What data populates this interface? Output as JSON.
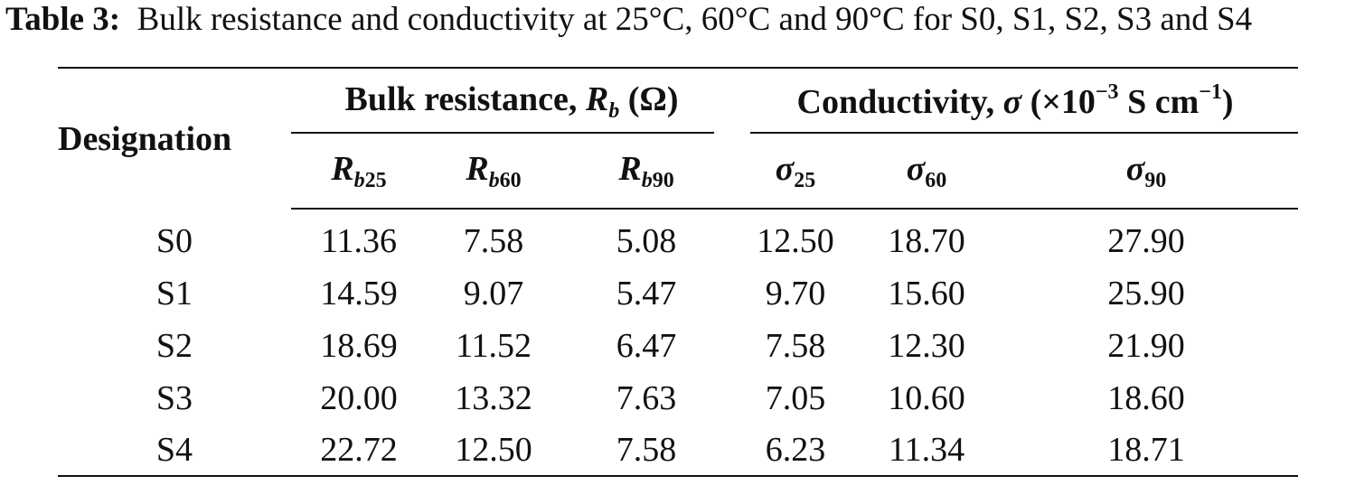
{
  "caption": {
    "label": "Table 3:",
    "text": "Bulk resistance and conductivity at 25°C, 60°C and 90°C for S0, S1, S2, S3 and S4"
  },
  "table": {
    "header": {
      "designation": "Designation",
      "group_resistance": {
        "text": "Bulk resistance,",
        "symbol": "R",
        "symbol_sub": "b",
        "unit": "(Ω)"
      },
      "group_conductivity": {
        "text": "Conductivity,",
        "symbol": "σ",
        "unit_prefix": "(×10",
        "unit_exp": "−3",
        "unit_mid": "S cm",
        "unit_exp2": "−1",
        "unit_suffix": ")"
      },
      "sub_columns": [
        {
          "symbol": "R",
          "sub_italic": "b",
          "sub_num": "25"
        },
        {
          "symbol": "R",
          "sub_italic": "b",
          "sub_num": "60"
        },
        {
          "symbol": "R",
          "sub_italic": "b",
          "sub_num": "90"
        },
        {
          "symbol": "σ",
          "sub_italic": "",
          "sub_num": "25"
        },
        {
          "symbol": "σ",
          "sub_italic": "",
          "sub_num": "60"
        },
        {
          "symbol": "σ",
          "sub_italic": "",
          "sub_num": "90"
        }
      ]
    },
    "rows": [
      {
        "designation": "S0",
        "values": [
          "11.36",
          "7.58",
          "5.08",
          "12.50",
          "18.70",
          "27.90"
        ]
      },
      {
        "designation": "S1",
        "values": [
          "14.59",
          "9.07",
          "5.47",
          "9.70",
          "15.60",
          "25.90"
        ]
      },
      {
        "designation": "S2",
        "values": [
          "18.69",
          "11.52",
          "6.47",
          "7.58",
          "12.30",
          "21.90"
        ]
      },
      {
        "designation": "S3",
        "values": [
          "20.00",
          "13.32",
          "7.63",
          "7.05",
          "10.60",
          "18.60"
        ]
      },
      {
        "designation": "S4",
        "values": [
          "22.72",
          "12.50",
          "7.58",
          "6.23",
          "11.34",
          "18.71"
        ]
      }
    ]
  }
}
